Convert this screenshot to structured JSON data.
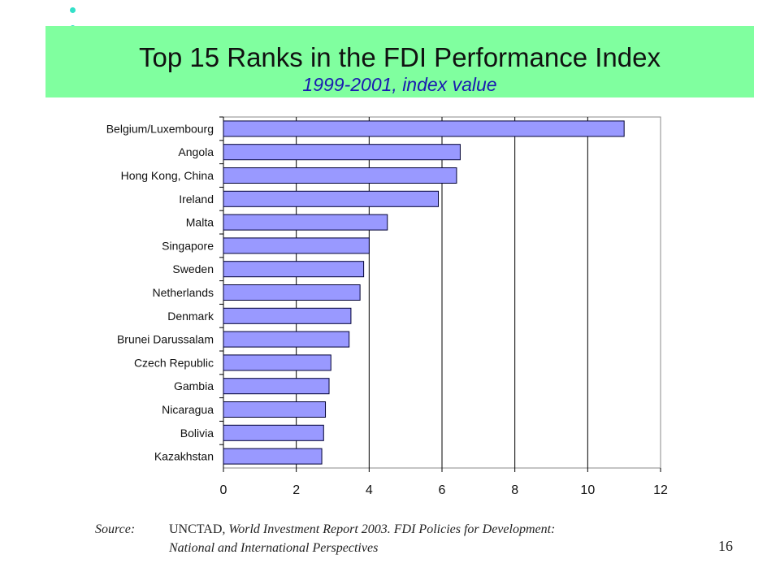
{
  "slide": {
    "title": "Top 15 Ranks in the FDI Performance Index",
    "subtitle": "1999-2001, index value",
    "source_label": "Source:",
    "source_org": "UNCTAD",
    "source_rest": ", World Investment Report 2003.  FDI Policies for Development:",
    "source_line2": "National and International Perspectives",
    "page_number": "16",
    "colors": {
      "title_band": "#80ff9f",
      "bar_fill": "#9999ff",
      "bullet": "#33e0c8"
    }
  },
  "chart_data": {
    "type": "bar",
    "orientation": "horizontal",
    "categories": [
      "Belgium/Luxembourg",
      "Angola",
      "Hong Kong, China",
      "Ireland",
      "Malta",
      "Singapore",
      "Sweden",
      "Netherlands",
      "Denmark",
      "Brunei Darussalam",
      "Czech Republic",
      "Gambia",
      "Nicaragua",
      "Bolivia",
      "Kazakhstan"
    ],
    "values": [
      11.0,
      6.5,
      6.4,
      5.9,
      4.5,
      4.0,
      3.85,
      3.75,
      3.5,
      3.45,
      2.95,
      2.9,
      2.8,
      2.75,
      2.7
    ],
    "xlim": [
      0,
      12
    ],
    "xticks": [
      0,
      2,
      4,
      6,
      8,
      10,
      12
    ],
    "grid": "vertical",
    "legend": "none"
  }
}
